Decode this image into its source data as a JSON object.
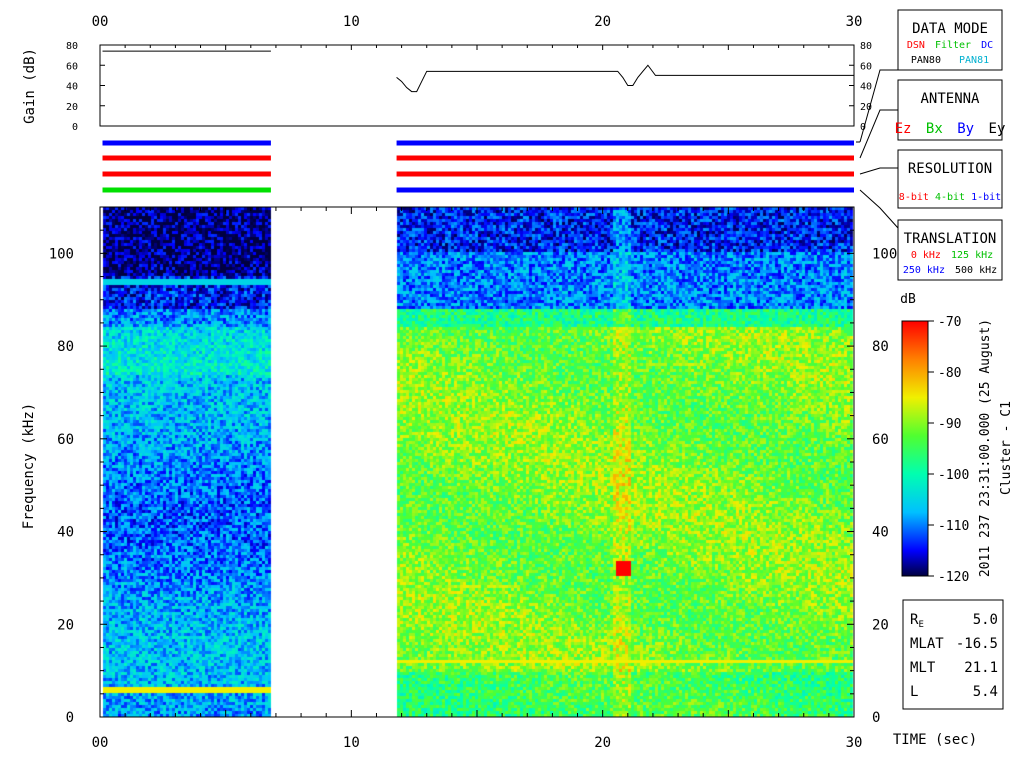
{
  "chart_data": [
    {
      "type": "line",
      "ylabel": "Gain (dB)",
      "xlim": [
        0,
        30
      ],
      "ylim": [
        0,
        80
      ],
      "x_ticks": [
        "00",
        "10",
        "20",
        "30"
      ],
      "y_ticks": [
        "0",
        "20",
        "40",
        "60",
        "80"
      ],
      "series": [
        {
          "x": [
            0.1,
            6.8
          ],
          "y": [
            74,
            74
          ]
        },
        {
          "x": [
            11.8,
            12.0,
            12.2,
            12.4,
            12.6,
            12.8,
            13.0,
            20.6,
            20.8,
            21.0,
            21.2,
            21.4,
            21.6,
            21.8,
            22.1,
            30
          ],
          "y": [
            48,
            44,
            38,
            34,
            34,
            44,
            54,
            54,
            48,
            40,
            40,
            48,
            54,
            60,
            50,
            50
          ]
        }
      ]
    },
    {
      "type": "heatmap",
      "xlabel": "TIME (sec)",
      "ylabel": "Frequency (kHz)",
      "xlim": [
        0,
        30
      ],
      "ylim": [
        0,
        110
      ],
      "x_ticks": [
        "00",
        "10",
        "20",
        "30"
      ],
      "y_ticks": [
        "0",
        "20",
        "40",
        "60",
        "80",
        "100"
      ],
      "data_segments": [
        [
          0.1,
          6.8
        ],
        [
          11.8,
          30
        ]
      ],
      "colorbar": {
        "label": "dB",
        "min": -120,
        "max": -70,
        "ticks": [
          "-70",
          "-80",
          "-90",
          "-100",
          "-110",
          "-120"
        ]
      },
      "features": [
        {
          "kHz": 94,
          "x": [
            0.1,
            6.8
          ],
          "note": "cyan horizontal line"
        },
        {
          "kHz": 6,
          "x": [
            0.1,
            6.8
          ],
          "note": "yellow horizontal line"
        },
        {
          "kHz": 12,
          "x": [
            11.8,
            30
          ],
          "note": "orange horizontal line"
        },
        {
          "kHz": 32,
          "x": [
            20.8
          ],
          "note": "red spot"
        }
      ]
    }
  ],
  "mode_bars": {
    "colors": {
      "red": "#ff0000",
      "green": "#00e000",
      "blue": "#0000ff"
    },
    "segments": [
      {
        "x": [
          0.1,
          6.8
        ],
        "rows": [
          "blue",
          "red",
          "red",
          "green"
        ]
      },
      {
        "x": [
          11.8,
          30
        ],
        "rows": [
          "blue",
          "red",
          "red",
          "blue"
        ]
      }
    ]
  },
  "legend": {
    "data_mode": {
      "title": "DATA MODE",
      "line1": [
        {
          "text": "DSN",
          "color": "#ff0000"
        },
        {
          "text": "Filter",
          "color": "#00c000"
        },
        {
          "text": "DC",
          "color": "#0000ff"
        }
      ],
      "line2": [
        {
          "text": "PAN80",
          "color": "#000000"
        },
        {
          "text": "PAN81",
          "color": "#00b0d0"
        }
      ]
    },
    "antenna": {
      "title": "ANTENNA",
      "items": [
        {
          "text": "Ez",
          "color": "#ff0000"
        },
        {
          "text": "Bx",
          "color": "#00c000"
        },
        {
          "text": "By",
          "color": "#0000ff"
        },
        {
          "text": "Ey",
          "color": "#000000"
        }
      ]
    },
    "resolution": {
      "title": "RESOLUTION",
      "items": [
        {
          "text": "8-bit",
          "color": "#ff0000"
        },
        {
          "text": "4-bit",
          "color": "#00c000"
        },
        {
          "text": "1-bit",
          "color": "#0000ff"
        }
      ]
    },
    "translation": {
      "title": "TRANSLATION",
      "line1": [
        {
          "text": "0 kHz",
          "color": "#ff0000"
        },
        {
          "text": "125 kHz",
          "color": "#00c000"
        }
      ],
      "line2": [
        {
          "text": "250 kHz",
          "color": "#0000ff"
        },
        {
          "text": "500 kHz",
          "color": "#000000"
        }
      ]
    }
  },
  "vertical_label": {
    "line1": "2011 237 23:31:00.000 (25 August)",
    "line2": "Cluster - C1"
  },
  "orbit": [
    {
      "label": "R",
      "sub": "E",
      "value": "5.0"
    },
    {
      "label": "MLAT",
      "sub": "",
      "value": "-16.5"
    },
    {
      "label": "MLT",
      "sub": "",
      "value": "21.1"
    },
    {
      "label": "L",
      "sub": "",
      "value": "5.4"
    }
  ]
}
